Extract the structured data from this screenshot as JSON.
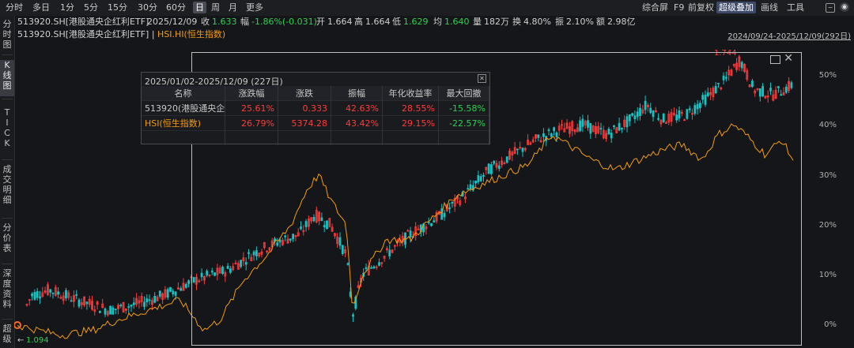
{
  "toolbar": {
    "periods": [
      "分时",
      "多日",
      "1分",
      "5分",
      "15分",
      "30分",
      "60分",
      "日",
      "周",
      "月",
      "更多"
    ],
    "active_period": "日",
    "right_buttons": [
      "综合屏",
      "F9",
      "前复权",
      "超级叠加",
      "画线",
      "工具"
    ],
    "active_right": "超级叠加"
  },
  "info": {
    "code_name": "513920.SH[港股通央企红利ETF]",
    "date": "2025/12/09",
    "close_label": "收",
    "close_value": "1.633",
    "change_label": "幅",
    "change_value": "-1.86%(-0.031)",
    "open_label": "开",
    "open_value": "1.664",
    "high_label": "高",
    "high_value": "1.664",
    "low_label": "低",
    "low_value": "1.629",
    "avg_label": "均",
    "avg_value": "1.640",
    "volume_label": "量",
    "volume_value": "182万",
    "turnover_label": "换",
    "turnover_value": "4.80%",
    "amplitude_label": "振",
    "amplitude_value": "2.10%",
    "amount_label": "额",
    "amount_value": "2.98亿"
  },
  "legend": {
    "main": "513920.SH[港股通央企红利ETF]",
    "sep": "|",
    "overlay": "HSI.HI(恒生指数)",
    "range": "2024/09/24-2025/12/09(292日)"
  },
  "left_tabs": [
    "分时图",
    "K线图",
    "TICK",
    "成交明细",
    "分价表",
    "深度资料",
    "超级"
  ],
  "stats": {
    "title": "2025/01/02-2025/12/09 (227日)",
    "headers": [
      "名称",
      "涨跌幅",
      "涨跌",
      "振幅",
      "年化收益率",
      "最大回撤"
    ],
    "rows": [
      [
        "513920(港股通央企红",
        "25.61%",
        "0.333",
        "42.63%",
        "28.55%",
        "-15.58%"
      ],
      [
        "HSI(恒生指数)",
        "26.79%",
        "5374.28",
        "43.42%",
        "29.15%",
        "-22.57%"
      ]
    ]
  },
  "chart_data": {
    "type": "line",
    "y_axis_labels": [
      "50%",
      "40%",
      "30%",
      "20%",
      "10%",
      "0%"
    ],
    "max_label": "1.744",
    "min_label": "1.094",
    "colors": {
      "up": "#ff3c3c",
      "down": "#19c2c2",
      "hsi": "#f39c12",
      "background": "#15161a"
    }
  }
}
